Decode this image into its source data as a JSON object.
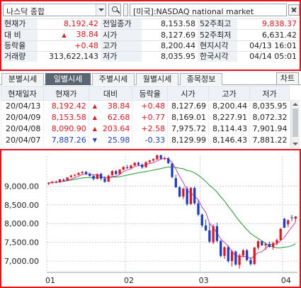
{
  "search": {
    "index_name": "나스닥 종합",
    "market_label": "[미국]:NASDAQ national market"
  },
  "quote": {
    "rows": [
      {
        "l1": "현재가",
        "v1": "8,192.42",
        "c1": "up",
        "a1": "",
        "l2": "전일종가",
        "v2": "8,153.58",
        "l3": "52주최고",
        "v3": "9,838.37",
        "c3": "up"
      },
      {
        "l1": "대 비",
        "v1": "38.84",
        "c1": "up",
        "a1": "▲",
        "l2": "시가",
        "v2": "8,127.69",
        "l3": "52주최저",
        "v3": "6,631.42",
        "c3": ""
      },
      {
        "l1": "등락율",
        "v1": "+0.48",
        "c1": "up",
        "a1": "",
        "l2": "고가",
        "v2": "8,200.44",
        "l3": "현지시각",
        "v3": "04/13 16:01",
        "c3": ""
      },
      {
        "l1": "거래량",
        "v1": "313,622,143",
        "c1": "",
        "a1": "",
        "l2": "저가",
        "v2": "8,035.95",
        "l3": "한국시각",
        "v3": "04/14 05:01",
        "c3": ""
      }
    ]
  },
  "tabs": [
    "분별시세",
    "일별시세",
    "주별시세",
    "월별시세",
    "종목정보"
  ],
  "active_tab": 1,
  "chart_button": "차트",
  "daily": {
    "headers": [
      "현재일자",
      "현재가",
      "대비",
      "등락율",
      "시가",
      "고가",
      "저가"
    ],
    "rows": [
      {
        "date": "20/04/13",
        "close": "8,192.42",
        "dir": "up",
        "change": "38.84",
        "rate": "+0.48",
        "open": "8,127.69",
        "high": "8,200.44",
        "low": "8,035.95"
      },
      {
        "date": "20/04/09",
        "close": "8,153.58",
        "dir": "up",
        "change": "62.68",
        "rate": "+0.77",
        "open": "8,169.01",
        "high": "8,227.91",
        "low": "8,072.32"
      },
      {
        "date": "20/04/08",
        "close": "8,090.90",
        "dir": "up",
        "change": "203.64",
        "rate": "+2.58",
        "open": "7,975.72",
        "high": "8,114.43",
        "low": "7,901.94"
      },
      {
        "date": "20/04/07",
        "close": "7,887.26",
        "dir": "dn",
        "change": "25.98",
        "rate": "-0.33",
        "open": "8,129.99",
        "high": "8,146.43",
        "low": "7,881.22"
      }
    ]
  },
  "colors": {
    "up": "#e8141c",
    "down": "#1a3ccf",
    "highlight_border": "#e8141c",
    "ma_short": "#d43aa8",
    "ma_long": "#1f9a2a",
    "active_tab": "#5b6672"
  },
  "chart_data": {
    "type": "candlestick",
    "title": "",
    "y_ticks": [
      "9,000.00",
      "8,500.00",
      "8,000.00",
      "7,500.00",
      "7,000.00"
    ],
    "y_tick_values": [
      9000,
      8500,
      8000,
      7500,
      7000
    ],
    "ylim": [
      6700,
      9800
    ],
    "x_ticks": [
      "01",
      "02",
      "03",
      "04"
    ],
    "x_tick_index": [
      0,
      21,
      41,
      63
    ],
    "candles": [
      [
        9060,
        9100,
        9030,
        9080
      ],
      [
        9090,
        9130,
        9060,
        9120
      ],
      [
        9110,
        9150,
        9080,
        9100
      ],
      [
        9100,
        9190,
        9090,
        9180
      ],
      [
        9170,
        9200,
        9120,
        9140
      ],
      [
        9150,
        9240,
        9140,
        9230
      ],
      [
        9240,
        9300,
        9220,
        9280
      ],
      [
        9280,
        9320,
        9250,
        9300
      ],
      [
        9300,
        9370,
        9280,
        9350
      ],
      [
        9350,
        9400,
        9320,
        9380
      ],
      [
        9380,
        9400,
        9300,
        9320
      ],
      [
        9320,
        9360,
        9250,
        9270
      ],
      [
        9270,
        9300,
        9150,
        9190
      ],
      [
        9190,
        9330,
        9180,
        9320
      ],
      [
        9330,
        9350,
        9150,
        9200
      ],
      [
        9200,
        9270,
        9090,
        9110
      ],
      [
        9120,
        9300,
        9100,
        9280
      ],
      [
        9290,
        9420,
        9280,
        9400
      ],
      [
        9400,
        9430,
        9300,
        9320
      ],
      [
        9320,
        9450,
        9310,
        9440
      ],
      [
        9440,
        9530,
        9420,
        9510
      ],
      [
        9500,
        9560,
        9460,
        9480
      ],
      [
        9480,
        9570,
        9470,
        9550
      ],
      [
        9550,
        9640,
        9530,
        9620
      ],
      [
        9620,
        9650,
        9540,
        9570
      ],
      [
        9570,
        9600,
        9460,
        9500
      ],
      [
        9500,
        9660,
        9490,
        9640
      ],
      [
        9640,
        9700,
        9600,
        9680
      ],
      [
        9680,
        9740,
        9650,
        9720
      ],
      [
        9710,
        9840,
        9700,
        9820
      ],
      [
        9820,
        9840,
        9700,
        9730
      ],
      [
        9730,
        9790,
        9690,
        9740
      ],
      [
        9740,
        9770,
        9590,
        9610
      ],
      [
        9600,
        9620,
        9210,
        9240
      ],
      [
        9210,
        9300,
        8950,
        8970
      ],
      [
        8970,
        9000,
        8700,
        8720
      ],
      [
        8720,
        8960,
        8650,
        8930
      ],
      [
        8930,
        8990,
        8470,
        8520
      ],
      [
        8520,
        8980,
        8500,
        8950
      ],
      [
        8950,
        8990,
        8500,
        8540
      ],
      [
        8540,
        8620,
        8200,
        8240
      ],
      [
        8240,
        8270,
        7900,
        7950
      ],
      [
        7950,
        8110,
        7800,
        7820
      ],
      [
        7820,
        8000,
        7480,
        7520
      ],
      [
        7500,
        7980,
        7450,
        7930
      ],
      [
        7930,
        8020,
        7500,
        7540
      ],
      [
        7540,
        7560,
        7100,
        7140
      ],
      [
        7140,
        7400,
        7060,
        7370
      ],
      [
        7370,
        7420,
        6960,
        7000
      ],
      [
        7000,
        7300,
        6860,
        7260
      ],
      [
        7260,
        7280,
        6880,
        6910
      ],
      [
        6900,
        7200,
        6800,
        7150
      ],
      [
        7150,
        7320,
        7100,
        7290
      ],
      [
        7290,
        7320,
        7000,
        7030
      ],
      [
        7030,
        7100,
        6880,
        6920
      ],
      [
        6920,
        7380,
        6900,
        7360
      ],
      [
        7360,
        7560,
        7300,
        7530
      ],
      [
        7530,
        7540,
        7410,
        7420
      ],
      [
        7420,
        7500,
        7300,
        7460
      ],
      [
        7460,
        7520,
        7360,
        7380
      ],
      [
        7380,
        7520,
        7300,
        7480
      ],
      [
        7480,
        7600,
        7420,
        7560
      ],
      [
        7560,
        7890,
        7540,
        7860
      ],
      [
        8130,
        8150,
        7880,
        7890
      ],
      [
        7980,
        8110,
        7900,
        8090
      ],
      [
        8170,
        8230,
        8070,
        8150
      ],
      [
        8130,
        8200,
        8040,
        8190
      ]
    ]
  }
}
